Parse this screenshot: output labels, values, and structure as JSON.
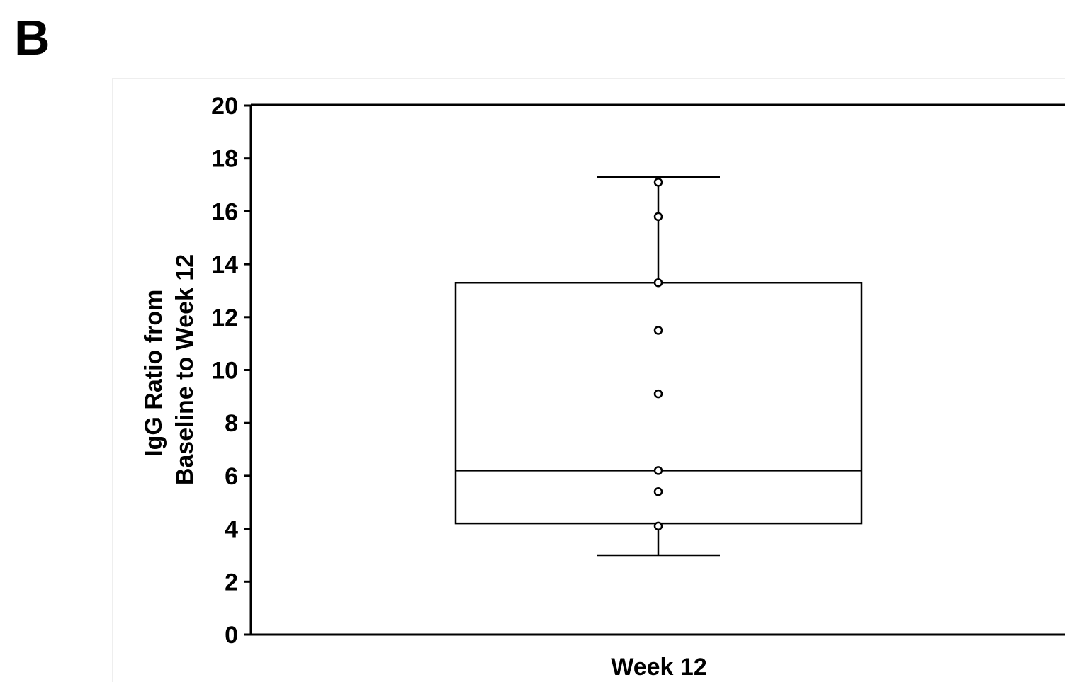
{
  "panel_label": "B",
  "chart_data": {
    "type": "box",
    "categories": [
      "Week 12"
    ],
    "xlabel": "Week 12",
    "ylabel_lines": [
      "IgG Ratio from",
      "Baseline to Week 12"
    ],
    "ylim": [
      0,
      20
    ],
    "yticks": [
      0,
      2,
      4,
      6,
      8,
      10,
      12,
      14,
      16,
      18,
      20
    ],
    "grid": false,
    "box": {
      "whisker_low": 3.0,
      "q1": 4.2,
      "median": 6.2,
      "q3": 13.3,
      "whisker_high": 17.3
    },
    "points": [
      17.1,
      15.8,
      13.3,
      11.5,
      9.1,
      6.2,
      5.4,
      4.1
    ],
    "colors": {
      "line": "#000000",
      "background": "#ffffff"
    }
  }
}
